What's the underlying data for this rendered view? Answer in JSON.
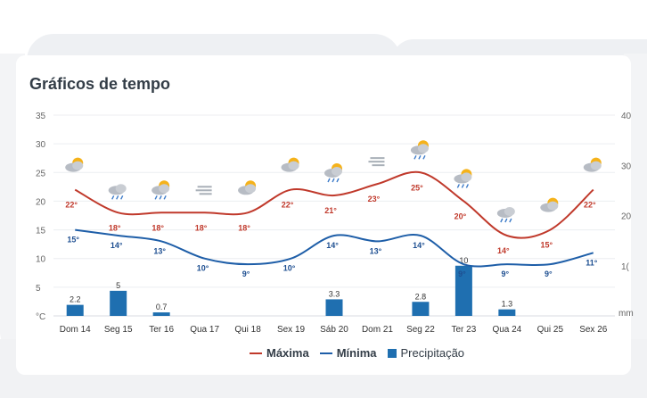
{
  "widget": {
    "title": "Gráficos de tempo"
  },
  "legend": {
    "max": "Máxima",
    "min": "Mínima",
    "precip": "Precipitação"
  },
  "colors": {
    "max": "#c0392b",
    "min": "#1e5ea8",
    "precip": "#1f6fb0"
  },
  "chart_data": {
    "type": "line",
    "categories": [
      "Dom 14",
      "Seg 15",
      "Ter 16",
      "Qua 17",
      "Qui 18",
      "Sex 19",
      "Sáb 20",
      "Dom 21",
      "Seg 22",
      "Ter 23",
      "Qua 24",
      "Qui 25",
      "Sex 26"
    ],
    "series": [
      {
        "name": "Máxima",
        "values": [
          22,
          18,
          18,
          18,
          18,
          22,
          21,
          23,
          25,
          20,
          14,
          15,
          22
        ],
        "labels": [
          "22°",
          "18°",
          "18°",
          "18°",
          "18°",
          "22°",
          "21°",
          "23°",
          "25°",
          "20°",
          "14°",
          "15°",
          "22°"
        ]
      },
      {
        "name": "Mínima",
        "values": [
          15,
          14,
          13,
          10,
          9,
          10,
          14,
          13,
          14,
          9,
          9,
          9,
          11
        ],
        "labels": [
          "15°",
          "14°",
          "13°",
          "10°",
          "9°",
          "10°",
          "14°",
          "13°",
          "14°",
          "9°",
          "9°",
          "9°",
          "11°"
        ]
      },
      {
        "name": "Precipitação",
        "type": "bar",
        "values": [
          2.2,
          5,
          0.7,
          null,
          null,
          null,
          3.3,
          null,
          2.8,
          10,
          1.3,
          null,
          null
        ],
        "labels": [
          "2.2",
          "5",
          "0.7",
          "",
          "",
          "",
          "3.3",
          "",
          "2.8",
          "10",
          "1.3",
          "",
          ""
        ]
      }
    ],
    "icons": [
      "partly-cloudy-icon",
      "rain-cloud-icon",
      "sun-rain-icon",
      "fog-icon",
      "partly-sunny-icon",
      "partly-sunny-icon",
      "sun-rain-icon",
      "fog-icon",
      "sun-rain-icon",
      "sun-rain-icon",
      "thunder-rain-icon",
      "partly-cloudy-icon",
      "partly-cloudy-icon"
    ],
    "y_left": {
      "unit": "°C",
      "ticks": [
        "35",
        "30",
        "25",
        "20",
        "15",
        "10",
        "5"
      ],
      "range": [
        0,
        35
      ]
    },
    "y_right": {
      "unit": "mm",
      "ticks": [
        "40",
        "30",
        "20",
        "1("
      ],
      "range": [
        0,
        40
      ]
    },
    "grid": true,
    "legend_position": "bottom-center"
  }
}
